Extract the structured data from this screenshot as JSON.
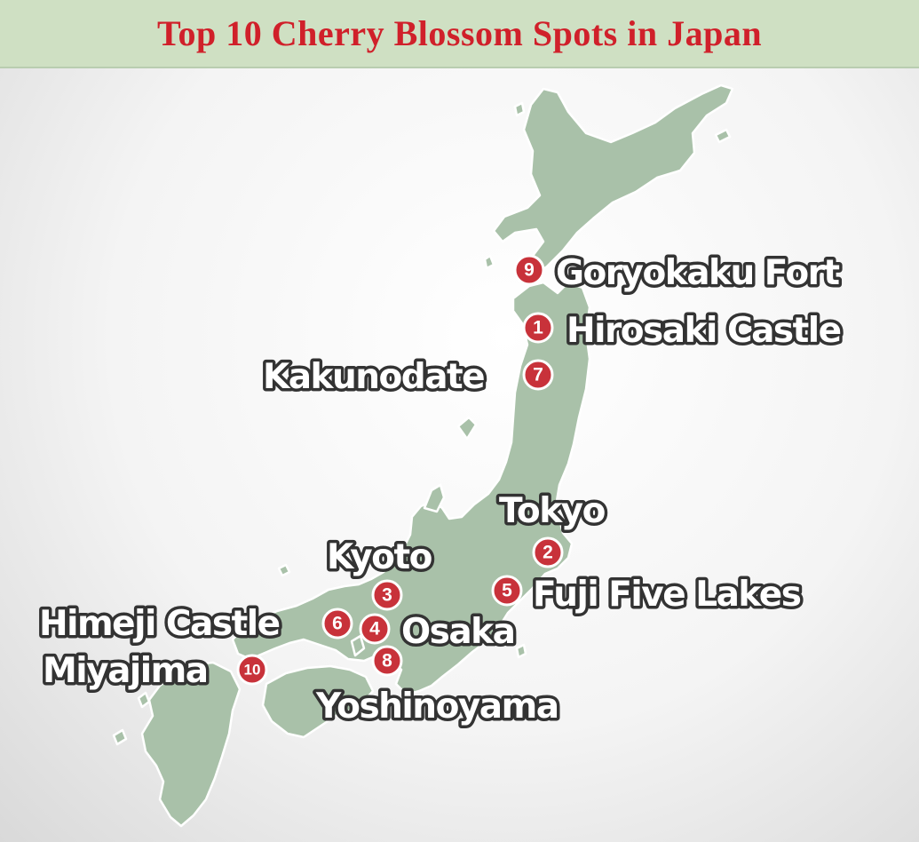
{
  "title": "Top 10 Cherry Blossom Spots in Japan",
  "colors": {
    "title_text": "#d0202a",
    "title_bar": "#cfe0c3",
    "land": "#a9c1a9",
    "marker": "#c8323a",
    "label_fill": "#ffffff",
    "label_outline": "#333333"
  },
  "markers": [
    {
      "number": "1",
      "name": "Hirosaki Castle"
    },
    {
      "number": "2",
      "name": "Tokyo"
    },
    {
      "number": "3",
      "name": "Kyoto"
    },
    {
      "number": "4",
      "name": "Osaka"
    },
    {
      "number": "5",
      "name": "Fuji Five Lakes"
    },
    {
      "number": "6",
      "name": "Himeji Castle"
    },
    {
      "number": "7",
      "name": "Kakunodate"
    },
    {
      "number": "8",
      "name": "Yoshinoyama"
    },
    {
      "number": "9",
      "name": "Goryokaku Fort"
    },
    {
      "number": "10",
      "name": "Miyajima"
    }
  ]
}
